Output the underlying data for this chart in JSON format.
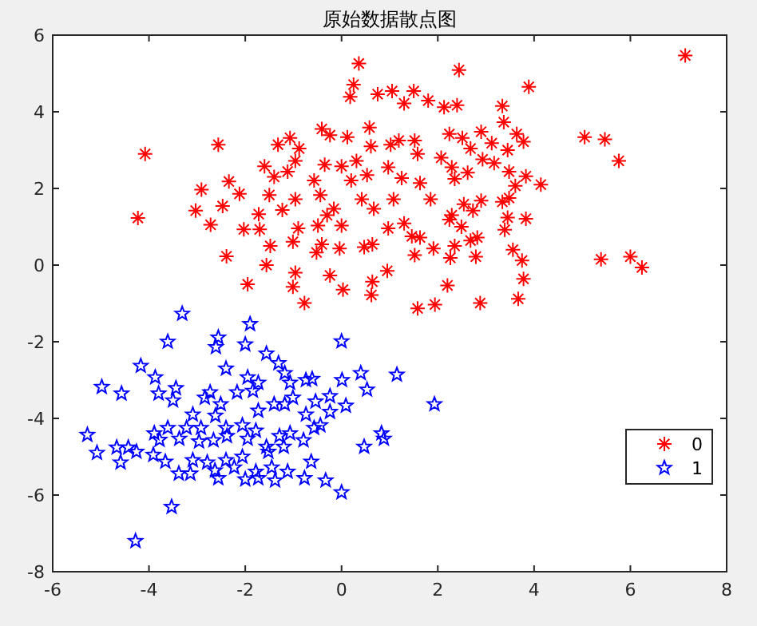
{
  "chart_data": {
    "type": "scatter",
    "title": "原始数据散点图",
    "xlim": [
      -6,
      8
    ],
    "ylim": [
      -8,
      6
    ],
    "xticks": [
      -6,
      -4,
      -2,
      0,
      2,
      4,
      6,
      8
    ],
    "yticks": [
      -8,
      -6,
      -4,
      -2,
      0,
      2,
      4,
      6
    ],
    "grid": false,
    "legend": "bottom right",
    "series": [
      {
        "name": "0",
        "color": "#ff0000",
        "marker": "cross",
        "x": [
          0.36,
          0.25,
          0.18,
          0.75,
          1.05,
          1.5,
          1.3,
          -4.08,
          -2.56,
          -4.23,
          -2.91,
          -3.03,
          -2.72,
          -2.34,
          -2.12,
          -2.47,
          -2.39,
          -1.95,
          -1.56,
          -2.03,
          -1.7,
          -1.72,
          -1.48,
          -1.5,
          -1.6,
          -1.32,
          -1.07,
          -0.88,
          -0.96,
          -1.4,
          -1.12,
          -1.23,
          -0.96,
          -0.9,
          -1.01,
          -0.96,
          -1.01,
          -0.77,
          -0.57,
          -0.44,
          -0.41,
          -0.24,
          -0.35,
          -0.3,
          -0.49,
          -0.52,
          -0.41,
          -0.04,
          -0.24,
          0.03,
          0.12,
          0,
          0,
          -0.16,
          0.31,
          0.2,
          0.42,
          0.58,
          0.61,
          0.53,
          0.67,
          0.64,
          0.47,
          0.64,
          0.62,
          0.95,
          1.02,
          1.19,
          0.97,
          1.25,
          1.08,
          1.3,
          0.97,
          1.46,
          1.52,
          1.58,
          1.63,
          1.52,
          7.14,
          2.44,
          3.89,
          1.8,
          2.13,
          2.4,
          3.34,
          3.37,
          5.05,
          5.47,
          5.76,
          5.39,
          6.0,
          6.24,
          2.24,
          2.51,
          2.9,
          3.12,
          2.68,
          3.45,
          3.64,
          3.78,
          2.93,
          3.17,
          2.29,
          3.48,
          3.83,
          4.14,
          3.61,
          2.62,
          2.07,
          2.35,
          1.85,
          2.9,
          2.54,
          3.34,
          3.48,
          2.73,
          2.29,
          2.24,
          3.45,
          3.83,
          3.39,
          2.49,
          1.63,
          2.68,
          2.82,
          2.35,
          1.91,
          2.26,
          2.79,
          3.56,
          3.75,
          3.78,
          2.2,
          3.67,
          2.88,
          1.94,
          1.58
        ],
        "values": [
          5.26,
          4.71,
          4.39,
          4.46,
          4.54,
          4.54,
          4.22,
          2.9,
          3.14,
          1.23,
          1.97,
          1.42,
          1.05,
          2.18,
          1.86,
          1.54,
          0.23,
          -0.5,
          0.0,
          0.93,
          0.93,
          1.33,
          0.5,
          1.83,
          2.58,
          3.14,
          3.32,
          3.04,
          2.72,
          2.3,
          2.44,
          1.44,
          1.72,
          0.96,
          0.61,
          -0.2,
          -0.57,
          -0.99,
          2.21,
          1.83,
          3.55,
          3.39,
          2.62,
          1.3,
          1.03,
          0.33,
          0.54,
          0.43,
          -0.27,
          -0.64,
          3.34,
          2.58,
          1.03,
          1.47,
          2.72,
          2.21,
          1.72,
          3.59,
          3.1,
          2.35,
          1.47,
          0.54,
          0.47,
          -0.43,
          -0.78,
          -0.15,
          3.14,
          3.25,
          2.55,
          2.27,
          1.72,
          1.09,
          0.96,
          0.75,
          3.25,
          2.9,
          2.14,
          0.26,
          5.47,
          5.09,
          4.65,
          4.29,
          4.12,
          4.17,
          4.15,
          3.73,
          3.34,
          3.28,
          2.72,
          0.15,
          0.22,
          -0.06,
          3.42,
          3.32,
          3.48,
          3.18,
          3.04,
          3.0,
          3.42,
          3.22,
          2.76,
          2.66,
          2.55,
          2.44,
          2.32,
          2.1,
          2.07,
          2.41,
          2.8,
          2.25,
          1.72,
          1.68,
          1.59,
          1.65,
          1.75,
          1.42,
          1.3,
          1.19,
          1.24,
          1.21,
          0.92,
          1.0,
          0.72,
          0.64,
          0.72,
          0.5,
          0.43,
          0.19,
          0.22,
          0.4,
          0.12,
          -0.36,
          -0.53,
          -0.88,
          -0.99,
          -1.03,
          -1.13
        ]
      },
      {
        "name": "1",
        "color": "#0000ff",
        "marker": "star",
        "x": [
          -3.31,
          -1.9,
          -3.61,
          0,
          -2.56,
          -2.61,
          -2.0,
          -1.56,
          -4.17,
          -3.87,
          -4.98,
          -4.57,
          -2.4,
          -1.31,
          -1.18,
          0.4,
          1.15,
          0.01,
          0.53,
          1.93,
          -3.8,
          -3.44,
          -3.5,
          -2.84,
          -2.73,
          -1.95,
          -1.73,
          -1.84,
          -2.17,
          -1.07,
          -0.74,
          -0.61,
          -1.01,
          -0.54,
          -0.24,
          0.09,
          -2.51,
          -3.09,
          -2.62,
          -1.73,
          -1.4,
          -1.18,
          -0.74,
          -0.24,
          -0.44,
          -3.61,
          -3.89,
          -3.78,
          -3.22,
          -2.92,
          -2.4,
          -2.06,
          -1.78,
          -1.95,
          -1.56,
          -1.07,
          -0.79,
          -1.2,
          -2.96,
          -2.66,
          -2.38,
          -5.28,
          -5.08,
          -4.67,
          -4.43,
          -4.26,
          -4.59,
          -3.91,
          -3.66,
          -3.38,
          -3.14,
          -3.09,
          -2.79,
          -2.63,
          -2.4,
          -2.56,
          -2.23,
          -2.06,
          -2.0,
          -1.78,
          -1.73,
          -1.45,
          -1.38,
          -1.12,
          -0.77,
          -0.63,
          -0.33,
          0,
          0.47,
          0.83,
          0.88,
          -3.53,
          -4.28,
          -1.52,
          -1.29,
          -0.57,
          -3.37
        ],
        "values": [
          -1.27,
          -1.54,
          -2.0,
          -1.99,
          -1.89,
          -2.14,
          -2.07,
          -2.31,
          -2.63,
          -2.93,
          -3.18,
          -3.35,
          -2.7,
          -2.56,
          -2.82,
          -2.82,
          -2.86,
          -3.0,
          -3.25,
          -3.63,
          -3.35,
          -3.21,
          -3.53,
          -3.46,
          -3.32,
          -2.93,
          -3.07,
          -3.28,
          -3.32,
          -3.07,
          -3.0,
          -2.97,
          -3.46,
          -3.56,
          -3.42,
          -3.67,
          -3.63,
          -3.9,
          -3.93,
          -3.8,
          -3.63,
          -3.63,
          -3.9,
          -3.83,
          -4.18,
          -4.25,
          -4.39,
          -4.56,
          -4.25,
          -4.25,
          -4.25,
          -4.18,
          -4.32,
          -4.53,
          -4.74,
          -4.39,
          -4.57,
          -4.74,
          -4.6,
          -4.57,
          -4.46,
          -4.43,
          -4.9,
          -4.76,
          -4.76,
          -4.87,
          -5.15,
          -4.95,
          -5.13,
          -5.44,
          -5.44,
          -5.09,
          -5.15,
          -5.36,
          -5.09,
          -5.56,
          -5.28,
          -5.0,
          -5.59,
          -5.39,
          -5.56,
          -5.28,
          -5.62,
          -5.39,
          -5.56,
          -5.13,
          -5.62,
          -5.93,
          -4.74,
          -4.39,
          -4.53,
          -6.31,
          -7.2,
          -4.87,
          -4.46,
          -4.25,
          -4.53
        ]
      }
    ]
  }
}
